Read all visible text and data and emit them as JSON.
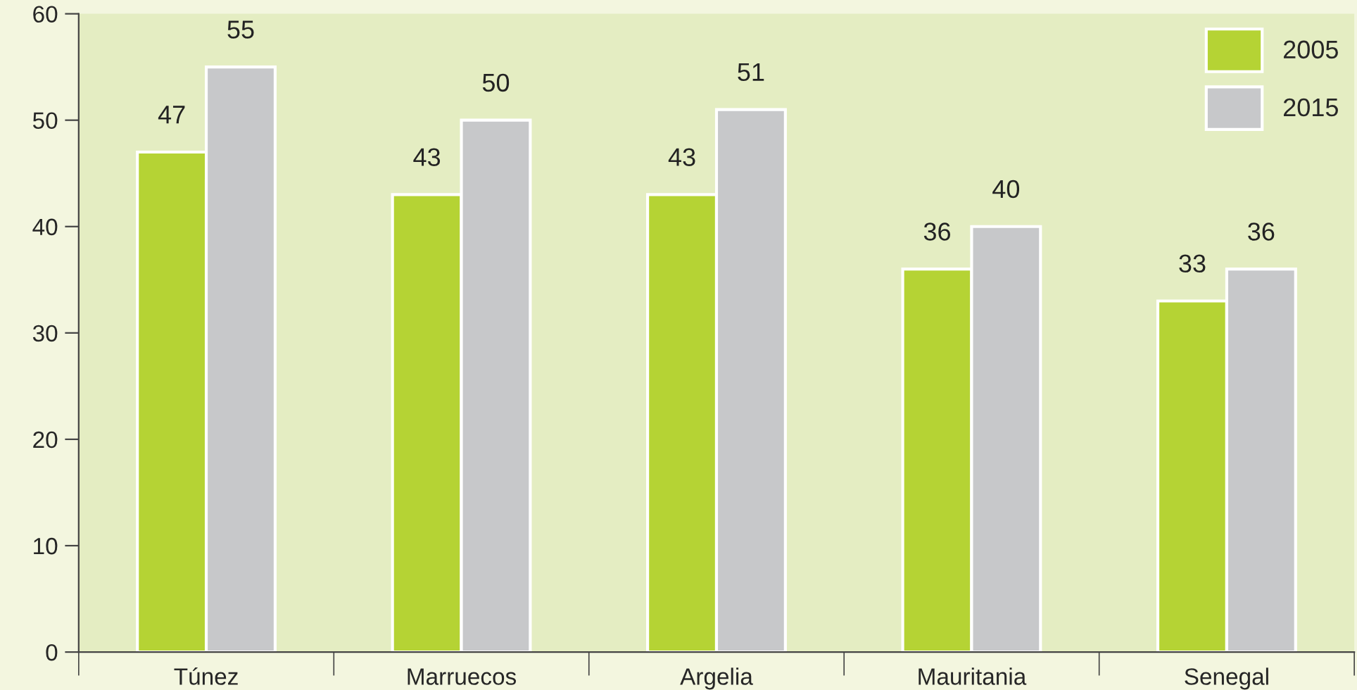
{
  "chart_data": {
    "type": "bar",
    "categories": [
      "Túnez",
      "Marruecos",
      "Argelia",
      "Mauritania",
      "Senegal"
    ],
    "series": [
      {
        "name": "2005",
        "color": "#b5d334",
        "values": [
          47,
          43,
          43,
          36,
          33
        ]
      },
      {
        "name": "2015",
        "color": "#c7c8ca",
        "values": [
          55,
          50,
          51,
          40,
          36
        ]
      }
    ],
    "ylim": [
      0,
      60
    ],
    "yticks": [
      0,
      10,
      20,
      30,
      40,
      50,
      60
    ],
    "data_labels": true,
    "legend": "top right",
    "grid": false
  }
}
